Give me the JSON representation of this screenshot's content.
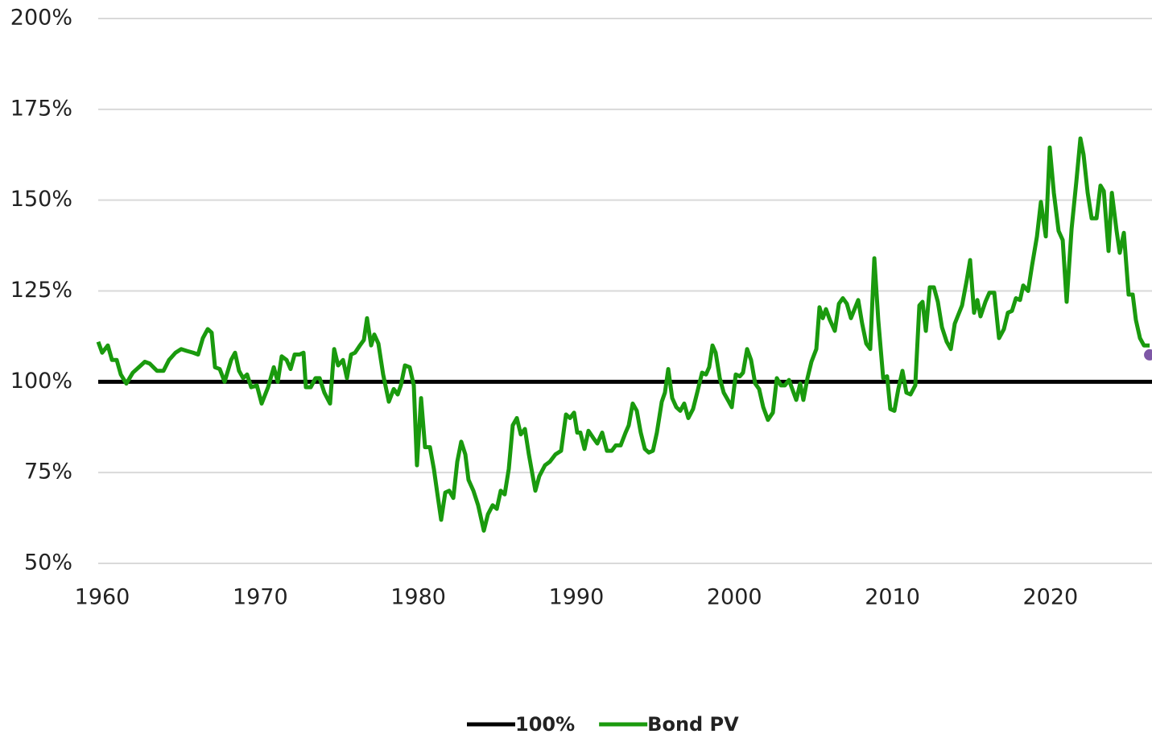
{
  "chart_data": {
    "type": "line",
    "xlim": [
      1960,
      2026.68
    ],
    "xticks": [
      1960,
      1970,
      1980,
      1990,
      2000,
      2010,
      2020
    ],
    "ylim": [
      50,
      200
    ],
    "yticks": [
      {
        "value": 50,
        "label": "50%"
      },
      {
        "value": 75,
        "label": "75%"
      },
      {
        "value": 100,
        "label": "100%"
      },
      {
        "value": 125,
        "label": "125%"
      },
      {
        "value": 150,
        "label": "150%"
      },
      {
        "value": 175,
        "label": "175%"
      },
      {
        "value": 200,
        "label": "200%"
      }
    ],
    "grid": true,
    "legend": "bottom",
    "series": [
      {
        "name": "100%",
        "color": "#000000",
        "x": [
          1960,
          2026.68
        ],
        "values": [
          100,
          100
        ]
      },
      {
        "name": "Bond PV",
        "color": "#1a9a0e",
        "x": [
          1960.0,
          1960.25,
          1960.61,
          1960.87,
          1961.17,
          1961.43,
          1961.78,
          1962.19,
          1962.7,
          1962.95,
          1963.26,
          1963.72,
          1964.13,
          1964.48,
          1964.89,
          1965.25,
          1965.6,
          1966.01,
          1966.32,
          1966.62,
          1966.93,
          1967.18,
          1967.39,
          1967.69,
          1968.0,
          1968.41,
          1968.66,
          1968.91,
          1969.17,
          1969.42,
          1969.68,
          1970.04,
          1970.34,
          1970.75,
          1971.11,
          1971.36,
          1971.61,
          1971.92,
          1972.17,
          1972.43,
          1972.74,
          1972.99,
          1973.14,
          1973.45,
          1973.75,
          1974.01,
          1974.31,
          1974.67,
          1974.93,
          1975.18,
          1975.49,
          1975.74,
          1976.0,
          1976.25,
          1976.56,
          1976.81,
          1977.01,
          1977.27,
          1977.47,
          1977.73,
          1978.03,
          1978.39,
          1978.7,
          1978.95,
          1979.15,
          1979.41,
          1979.71,
          1979.97,
          1980.17,
          1980.43,
          1980.68,
          1980.99,
          1981.24,
          1981.45,
          1981.7,
          1981.96,
          1982.21,
          1982.47,
          1982.72,
          1982.97,
          1983.23,
          1983.43,
          1983.74,
          1984.04,
          1984.4,
          1984.66,
          1984.96,
          1985.22,
          1985.47,
          1985.72,
          1985.98,
          1986.23,
          1986.49,
          1986.74,
          1987.0,
          1987.25,
          1987.66,
          1987.91,
          1988.27,
          1988.58,
          1988.93,
          1989.29,
          1989.6,
          1989.85,
          1990.11,
          1990.31,
          1990.51,
          1990.77,
          1991.02,
          1991.33,
          1991.58,
          1991.89,
          1992.19,
          1992.5,
          1992.75,
          1993.06,
          1993.37,
          1993.57,
          1993.82,
          1994.08,
          1994.33,
          1994.59,
          1994.84,
          1995.1,
          1995.35,
          1995.66,
          1995.86,
          1996.07,
          1996.32,
          1996.58,
          1996.83,
          1997.08,
          1997.34,
          1997.64,
          1997.9,
          1998.21,
          1998.46,
          1998.66,
          1998.87,
          1999.07,
          1999.33,
          1999.58,
          1999.84,
          2000.09,
          2000.34,
          2000.6,
          2000.8,
          2001.06,
          2001.31,
          2001.57,
          2001.82,
          2002.08,
          2002.38,
          2002.69,
          2002.94,
          2003.2,
          2003.45,
          2003.71,
          2003.96,
          2004.17,
          2004.42,
          2004.62,
          2004.88,
          2005.13,
          2005.44,
          2005.64,
          2005.85,
          2006.05,
          2006.3,
          2006.61,
          2006.87,
          2007.12,
          2007.37,
          2007.63,
          2008.09,
          2008.34,
          2008.6,
          2008.85,
          2009.11,
          2009.36,
          2009.67,
          2009.92,
          2010.12,
          2010.38,
          2010.63,
          2010.89,
          2011.14,
          2011.4,
          2011.7,
          2011.96,
          2012.16,
          2012.37,
          2012.62,
          2012.88,
          2013.13,
          2013.39,
          2013.69,
          2013.95,
          2014.2,
          2014.66,
          2014.96,
          2015.17,
          2015.42,
          2015.63,
          2015.83,
          2016.14,
          2016.39,
          2016.7,
          2017.0,
          2017.31,
          2017.56,
          2017.82,
          2018.07,
          2018.33,
          2018.53,
          2018.84,
          2019.09,
          2019.4,
          2019.65,
          2019.96,
          2020.21,
          2020.47,
          2020.77,
          2021.03,
          2021.28,
          2021.59,
          2021.89,
          2022.15,
          2022.35,
          2022.61,
          2022.86,
          2023.17,
          2023.42,
          2023.63,
          2023.93,
          2024.14,
          2024.44,
          2024.64,
          2024.9,
          2025.2,
          2025.46,
          2025.66,
          2025.92,
          2026.17,
          2026.53
        ],
        "values": [
          111,
          108,
          110,
          106,
          106,
          102,
          99.5,
          102.5,
          104.5,
          105.5,
          105,
          103,
          103,
          106,
          108,
          109,
          108.5,
          108,
          107.5,
          112,
          114.5,
          113.5,
          104,
          103.5,
          100,
          106,
          108,
          103,
          101,
          102,
          98.5,
          99,
          94,
          98.5,
          104,
          100,
          107,
          106,
          103.5,
          107.5,
          107.5,
          108,
          98.5,
          98.5,
          101,
          101,
          97,
          94,
          109,
          104.5,
          106,
          101,
          107.5,
          108,
          110,
          111.5,
          117.5,
          110,
          113,
          110.5,
          102,
          94.5,
          98,
          96.5,
          99,
          104.5,
          104,
          99,
          77,
          95.5,
          82,
          82,
          76,
          69.5,
          62,
          69.5,
          70,
          68,
          78,
          83.5,
          80,
          73,
          70,
          66,
          59,
          63.5,
          66,
          65,
          70,
          69,
          76,
          88,
          90,
          85.5,
          87,
          80,
          70,
          74,
          77,
          78,
          80,
          81,
          91,
          90,
          91.5,
          86,
          86,
          81.5,
          86.5,
          84.5,
          83,
          86,
          81,
          81,
          82.5,
          82.5,
          86,
          88,
          94,
          92,
          86,
          81.5,
          80.5,
          81,
          86,
          94.5,
          97,
          103.5,
          95.5,
          93,
          92,
          94,
          90,
          92.5,
          97,
          102.5,
          102,
          104,
          110,
          108,
          101,
          97,
          95,
          93,
          102,
          101.5,
          102.5,
          109,
          106,
          99.5,
          98,
          93,
          89.5,
          91.5,
          101,
          99,
          99,
          100.5,
          97.5,
          95,
          99.5,
          95,
          101,
          105.5,
          109,
          120.5,
          117.5,
          120,
          117,
          114,
          121.5,
          123,
          121.5,
          117.5,
          122.5,
          116,
          110.5,
          109,
          134,
          117,
          101,
          101.5,
          92.5,
          92,
          98,
          103,
          97,
          96.5,
          99,
          121,
          122,
          114,
          126,
          126,
          122,
          115,
          111,
          109,
          116,
          121,
          128,
          133.5,
          119,
          122.5,
          118,
          122,
          124.5,
          124.5,
          112,
          114.5,
          119,
          119.5,
          123,
          122.5,
          126.5,
          125,
          132,
          140,
          149.5,
          140,
          164.5,
          152,
          141.5,
          139,
          122,
          142,
          155,
          167,
          162.5,
          152,
          145,
          145,
          154,
          152.5,
          136,
          152,
          141.5,
          135.5,
          141,
          124,
          124,
          117,
          112,
          110,
          110
        ]
      }
    ],
    "marker": {
      "x": 2026.53,
      "y": 107.4,
      "color": "#7e57a6"
    }
  }
}
